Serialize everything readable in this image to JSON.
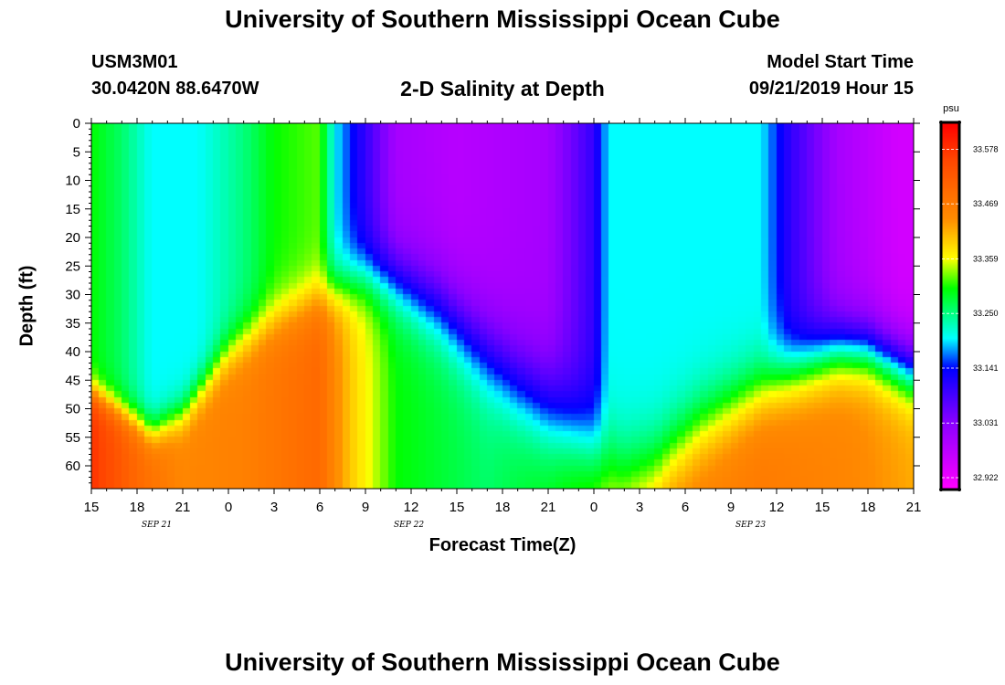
{
  "page": {
    "top_title": "University of Southern Mississippi Ocean Cube",
    "bottom_title": "University of Southern Mississippi Ocean Cube",
    "station_id": "USM3M01",
    "location": "30.0420N 88.6470W",
    "plot_title": "2-D Salinity at Depth",
    "model_label": "Model Start Time",
    "model_start": "09/21/2019 Hour 15"
  },
  "chart_data": {
    "type": "heatmap",
    "title": "2-D Salinity at Depth",
    "xlabel": "Forecast Time(Z)",
    "ylabel": "Depth (ft)",
    "x_tick_labels": [
      "15",
      "18",
      "21",
      "0",
      "3",
      "6",
      "9",
      "12",
      "15",
      "18",
      "21",
      "0",
      "3",
      "6",
      "9",
      "12",
      "15",
      "18",
      "21"
    ],
    "date_labels": [
      {
        "label": "SEP 21",
        "hours_from_start": 4
      },
      {
        "label": "SEP 22",
        "hours_from_start": 21
      },
      {
        "label": "SEP 23",
        "hours_from_start": 43
      }
    ],
    "x_range_hours": [
      0,
      54
    ],
    "x_tick_step_hours": 3,
    "y_range_ft": [
      0,
      64
    ],
    "y_ticks": [
      0,
      5,
      10,
      15,
      20,
      25,
      30,
      35,
      40,
      45,
      50,
      55,
      60
    ],
    "colorbar": {
      "unit": "psu",
      "labels": [
        33.578,
        33.469,
        33.359,
        33.25,
        33.141,
        33.031,
        32.922
      ],
      "min": 32.9,
      "max": 33.63
    },
    "colormap": [
      {
        "v": 32.9,
        "c": "#ff00ff"
      },
      {
        "v": 33.03,
        "c": "#8b00ff"
      },
      {
        "v": 33.14,
        "c": "#0000ff"
      },
      {
        "v": 33.2,
        "c": "#00ffff"
      },
      {
        "v": 33.3,
        "c": "#00ff00"
      },
      {
        "v": 33.36,
        "c": "#ffff00"
      },
      {
        "v": 33.44,
        "c": "#ff8c00"
      },
      {
        "v": 33.56,
        "c": "#ff4500"
      },
      {
        "v": 33.63,
        "c": "#ff0000"
      }
    ],
    "salinity_model": {
      "surface_psu_by_hour": [
        [
          0,
          33.3
        ],
        [
          2,
          33.26
        ],
        [
          4,
          33.2
        ],
        [
          7,
          33.2
        ],
        [
          10,
          33.25
        ],
        [
          12,
          33.3
        ],
        [
          15,
          33.32
        ],
        [
          16,
          33.2
        ],
        [
          18,
          33.1
        ],
        [
          20,
          33.0
        ],
        [
          24,
          32.98
        ],
        [
          30,
          33.0
        ],
        [
          33,
          33.1
        ],
        [
          34,
          33.2
        ],
        [
          41,
          33.2
        ],
        [
          44,
          33.2
        ],
        [
          46,
          33.1
        ],
        [
          49,
          33.0
        ],
        [
          53,
          32.95
        ],
        [
          54,
          32.95
        ]
      ],
      "deep_psu_by_hour": [
        [
          0,
          33.58
        ],
        [
          3,
          33.5
        ],
        [
          6,
          33.45
        ],
        [
          10,
          33.46
        ],
        [
          15,
          33.5
        ],
        [
          17,
          33.4
        ],
        [
          20,
          33.3
        ],
        [
          26,
          33.26
        ],
        [
          30,
          33.3
        ],
        [
          33,
          33.35
        ],
        [
          38,
          33.45
        ],
        [
          44,
          33.47
        ],
        [
          50,
          33.45
        ],
        [
          54,
          33.42
        ]
      ],
      "transition_depth_ft_by_hour": [
        [
          0,
          47
        ],
        [
          3,
          52
        ],
        [
          4,
          54
        ],
        [
          6,
          51
        ],
        [
          9,
          40
        ],
        [
          12,
          34
        ],
        [
          15,
          30
        ],
        [
          16,
          29
        ],
        [
          17,
          28
        ],
        [
          18,
          27
        ],
        [
          20,
          28
        ],
        [
          23,
          33
        ],
        [
          28,
          46
        ],
        [
          33,
          57
        ],
        [
          35,
          61
        ],
        [
          37,
          60
        ],
        [
          40,
          53
        ],
        [
          45,
          45
        ],
        [
          49,
          40
        ],
        [
          51,
          40
        ],
        [
          54,
          44
        ]
      ],
      "transition_width_ft_by_hour": [
        [
          0,
          6
        ],
        [
          6,
          8
        ],
        [
          10,
          10
        ],
        [
          16,
          11
        ],
        [
          22,
          16
        ],
        [
          30,
          20
        ],
        [
          36,
          17
        ],
        [
          44,
          14
        ],
        [
          50,
          13
        ],
        [
          54,
          13
        ]
      ]
    }
  }
}
